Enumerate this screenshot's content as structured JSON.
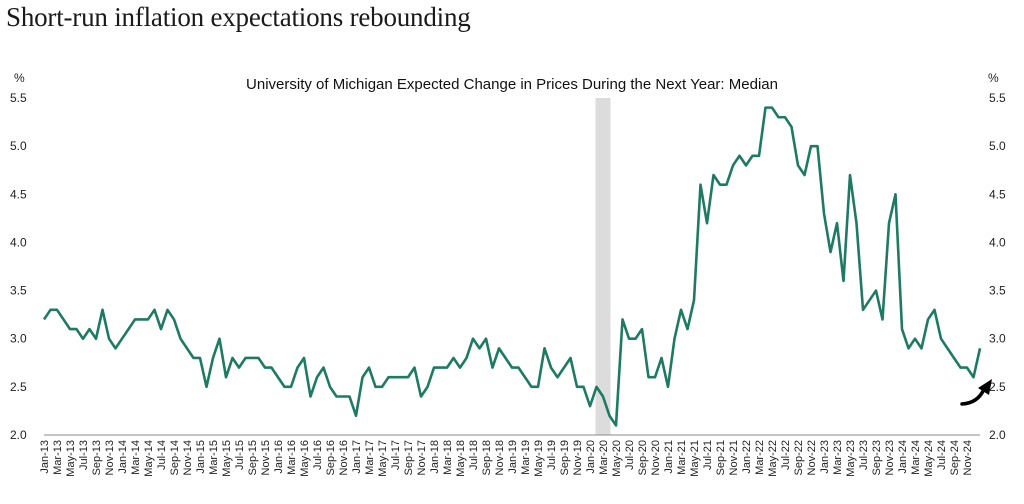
{
  "page": {
    "title": "Short-run inflation expectations rebounding"
  },
  "chart_data": {
    "type": "line",
    "title": "University of Michigan Expected Change in Prices During the Next Year: Median",
    "y_unit_left": "%",
    "y_unit_right": "%",
    "ylim": [
      2.0,
      5.5
    ],
    "yticks": [
      "2.0",
      "2.5",
      "3.0",
      "3.5",
      "4.0",
      "4.5",
      "5.0",
      "5.5"
    ],
    "ytick_values": [
      2.0,
      2.5,
      3.0,
      3.5,
      4.0,
      4.5,
      5.0,
      5.5
    ],
    "x_labels": [
      "Jan-13",
      "Mar-13",
      "May-13",
      "Jul-13",
      "Sep-13",
      "Nov-13",
      "Jan-14",
      "Mar-14",
      "May-14",
      "Jul-14",
      "Sep-14",
      "Nov-14",
      "Jan-15",
      "Mar-15",
      "May-15",
      "Jul-15",
      "Sep-15",
      "Nov-15",
      "Jan-16",
      "Mar-16",
      "May-16",
      "Jul-16",
      "Sep-16",
      "Nov-16",
      "Jan-17",
      "Mar-17",
      "May-17",
      "Jul-17",
      "Sep-17",
      "Nov-17",
      "Jan-18",
      "Mar-18",
      "May-18",
      "Jul-18",
      "Sep-18",
      "Nov-18",
      "Jan-19",
      "Mar-19",
      "May-19",
      "Jul-19",
      "Sep-19",
      "Nov-19",
      "Jan-20",
      "Mar-20",
      "May-20",
      "Jul-20",
      "Sep-20",
      "Nov-20",
      "Jan-21",
      "Mar-21",
      "May-21",
      "Jul-21",
      "Sep-21",
      "Nov-21",
      "Jan-22",
      "Mar-22",
      "May-22",
      "Jul-22",
      "Sep-22",
      "Nov-22",
      "Jan-23",
      "Mar-23",
      "May-23",
      "Jul-23",
      "Sep-23",
      "Nov-23",
      "Jan-24",
      "Mar-24",
      "May-24",
      "Jul-24",
      "Sep-24",
      "Nov-24"
    ],
    "x_start": "Jan-13",
    "frequency": "monthly",
    "series": [
      {
        "color": "#1e7a63",
        "values": [
          3.2,
          3.3,
          3.3,
          3.2,
          3.1,
          3.1,
          3.0,
          3.1,
          3.0,
          3.3,
          3.0,
          2.9,
          3.0,
          3.1,
          3.2,
          3.2,
          3.2,
          3.3,
          3.1,
          3.3,
          3.2,
          3.0,
          2.9,
          2.8,
          2.8,
          2.5,
          2.8,
          3.0,
          2.6,
          2.8,
          2.7,
          2.8,
          2.8,
          2.8,
          2.7,
          2.7,
          2.6,
          2.5,
          2.5,
          2.7,
          2.8,
          2.4,
          2.6,
          2.7,
          2.5,
          2.4,
          2.4,
          2.4,
          2.2,
          2.6,
          2.7,
          2.5,
          2.5,
          2.6,
          2.6,
          2.6,
          2.6,
          2.7,
          2.4,
          2.5,
          2.7,
          2.7,
          2.7,
          2.8,
          2.7,
          2.8,
          3.0,
          2.9,
          3.0,
          2.7,
          2.9,
          2.8,
          2.7,
          2.7,
          2.6,
          2.5,
          2.5,
          2.9,
          2.7,
          2.6,
          2.7,
          2.8,
          2.5,
          2.5,
          2.3,
          2.5,
          2.4,
          2.2,
          2.1,
          3.2,
          3.0,
          3.0,
          3.1,
          2.6,
          2.6,
          2.8,
          2.5,
          3.0,
          3.3,
          3.1,
          3.4,
          4.6,
          4.2,
          4.7,
          4.6,
          4.6,
          4.8,
          4.9,
          4.8,
          4.9,
          4.9,
          5.4,
          5.4,
          5.3,
          5.3,
          5.2,
          4.8,
          4.7,
          5.0,
          5.0,
          4.3,
          3.9,
          4.2,
          3.6,
          4.7,
          4.2,
          3.3,
          3.4,
          3.5,
          3.2,
          4.2,
          4.5,
          3.1,
          2.9,
          3.0,
          2.9,
          3.2,
          3.3,
          3.0,
          2.9,
          2.8,
          2.7,
          2.7,
          2.6,
          2.9
        ]
      }
    ],
    "shaded_period": [
      "Feb-20",
      "Apr-20"
    ],
    "shade_color": "#dcdcdc",
    "legend": "none",
    "grid": false,
    "annotation": "curved-up-arrow-icon"
  }
}
